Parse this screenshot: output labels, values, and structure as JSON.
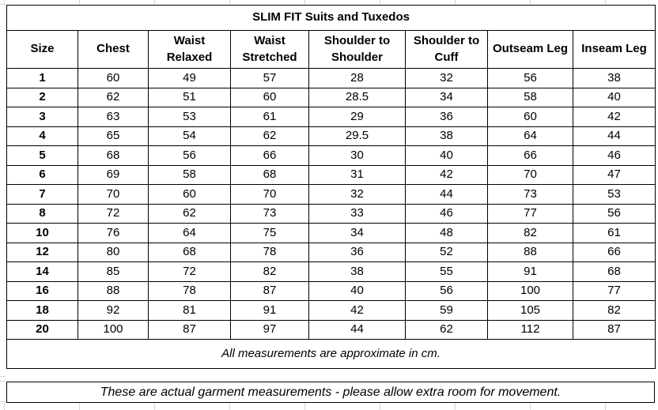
{
  "table": {
    "title": "SLIM FIT Suits and Tuxedos",
    "columns": [
      "Size",
      "Chest",
      "Waist Relaxed",
      "Waist Stretched",
      "Shoulder to Shoulder",
      "Shoulder to Cuff",
      "Outseam Leg",
      "Inseam Leg"
    ],
    "rows": [
      [
        "1",
        "60",
        "49",
        "57",
        "28",
        "32",
        "56",
        "38"
      ],
      [
        "2",
        "62",
        "51",
        "60",
        "28.5",
        "34",
        "58",
        "40"
      ],
      [
        "3",
        "63",
        "53",
        "61",
        "29",
        "36",
        "60",
        "42"
      ],
      [
        "4",
        "65",
        "54",
        "62",
        "29.5",
        "38",
        "64",
        "44"
      ],
      [
        "5",
        "68",
        "56",
        "66",
        "30",
        "40",
        "66",
        "46"
      ],
      [
        "6",
        "69",
        "58",
        "68",
        "31",
        "42",
        "70",
        "47"
      ],
      [
        "7",
        "70",
        "60",
        "70",
        "32",
        "44",
        "73",
        "53"
      ],
      [
        "8",
        "72",
        "62",
        "73",
        "33",
        "46",
        "77",
        "56"
      ],
      [
        "10",
        "76",
        "64",
        "75",
        "34",
        "48",
        "82",
        "61"
      ],
      [
        "12",
        "80",
        "68",
        "78",
        "36",
        "52",
        "88",
        "66"
      ],
      [
        "14",
        "85",
        "72",
        "82",
        "38",
        "55",
        "91",
        "68"
      ],
      [
        "16",
        "88",
        "78",
        "87",
        "40",
        "56",
        "100",
        "77"
      ],
      [
        "18",
        "92",
        "81",
        "91",
        "42",
        "59",
        "105",
        "82"
      ],
      [
        "20",
        "100",
        "87",
        "97",
        "44",
        "62",
        "112",
        "87"
      ]
    ],
    "note_measurements": "All measurements are approximate in cm.",
    "note_garment": "These are actual garment measurements - please allow extra room for movement."
  },
  "colors": {
    "border": "#000000",
    "gridline": "#d6d6d6",
    "text": "#000000",
    "background": "#ffffff"
  }
}
